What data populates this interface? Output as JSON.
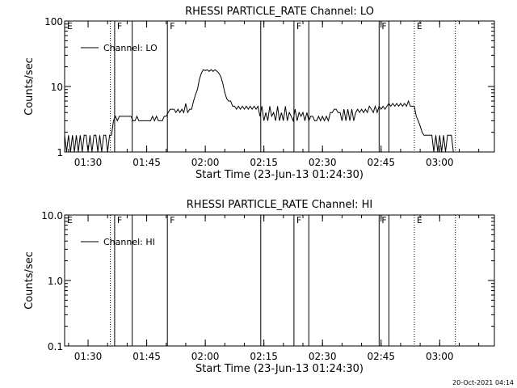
{
  "footer": {
    "timestamp": "20-Oct-2021 04:14"
  },
  "flag_markers": [
    {
      "t": 0.0,
      "label": "E",
      "style": "dotted"
    },
    {
      "t": 11.7,
      "label": "",
      "style": "dotted"
    },
    {
      "t": 12.8,
      "label": "F",
      "style": "solid"
    },
    {
      "t": 17.3,
      "label": "",
      "style": "solid"
    },
    {
      "t": 26.3,
      "label": "F",
      "style": "solid"
    },
    {
      "t": 50.2,
      "label": "",
      "style": "solid"
    },
    {
      "t": 58.7,
      "label": "F",
      "style": "solid"
    },
    {
      "t": 62.5,
      "label": "",
      "style": "solid"
    },
    {
      "t": 80.5,
      "label": "F",
      "style": "solid"
    },
    {
      "t": 83.0,
      "label": "",
      "style": "solid"
    },
    {
      "t": 89.5,
      "label": "E",
      "style": "dotted"
    },
    {
      "t": 100.0,
      "label": "",
      "style": "dotted"
    }
  ],
  "chart_data": [
    {
      "type": "line",
      "title": "RHESSI PARTICLE_RATE Channel: LO",
      "xlabel": "Start Time (23-Jun-13 01:24:30)",
      "ylabel": "Counts/sec",
      "yscale": "log",
      "ylim": [
        1,
        100
      ],
      "xlim_minutes": [
        0,
        110
      ],
      "x_ticks": [
        {
          "t": 6.0,
          "label": "01:30"
        },
        {
          "t": 21.0,
          "label": "01:45"
        },
        {
          "t": 36.0,
          "label": "02:00"
        },
        {
          "t": 51.0,
          "label": "02:15"
        },
        {
          "t": 66.0,
          "label": "02:30"
        },
        {
          "t": 81.0,
          "label": "02:45"
        },
        {
          "t": 96.0,
          "label": "03:00"
        }
      ],
      "y_ticks": [
        {
          "v": 1,
          "label": "1"
        },
        {
          "v": 10,
          "label": "10"
        },
        {
          "v": 100,
          "label": "100"
        }
      ],
      "legend": {
        "label": "Channel: LO",
        "placement": "top-left"
      },
      "series": [
        {
          "name": "Channel: LO",
          "points": [
            [
              0,
              1.8
            ],
            [
              0.5,
              1
            ],
            [
              1,
              1.8
            ],
            [
              1.5,
              1
            ],
            [
              2,
              1.8
            ],
            [
              2.5,
              1
            ],
            [
              3,
              1.8
            ],
            [
              3.5,
              1
            ],
            [
              4,
              1.8
            ],
            [
              4.5,
              1
            ],
            [
              5,
              1.8
            ],
            [
              5.5,
              1.8
            ],
            [
              6,
              1
            ],
            [
              6.5,
              1.8
            ],
            [
              7,
              1
            ],
            [
              7.5,
              1.8
            ],
            [
              8,
              1.8
            ],
            [
              8.5,
              1
            ],
            [
              9,
              1.8
            ],
            [
              9.5,
              1
            ],
            [
              10,
              1.8
            ],
            [
              10.5,
              1.8
            ],
            [
              11,
              1
            ],
            [
              11.5,
              1.8
            ],
            [
              12,
              1.8
            ],
            [
              12.5,
              3
            ],
            [
              13,
              3.5
            ],
            [
              13.5,
              3
            ],
            [
              14,
              3.5
            ],
            [
              14.5,
              3.5
            ],
            [
              15,
              3.5
            ],
            [
              15.5,
              3.5
            ],
            [
              16,
              3.5
            ],
            [
              16.5,
              3.5
            ],
            [
              17,
              3.5
            ],
            [
              17.5,
              3
            ],
            [
              18,
              3
            ],
            [
              18.5,
              3.5
            ],
            [
              19,
              3
            ],
            [
              19.5,
              3
            ],
            [
              20,
              3
            ],
            [
              20.5,
              3
            ],
            [
              21,
              3
            ],
            [
              21.5,
              3
            ],
            [
              22,
              3
            ],
            [
              22.5,
              3.5
            ],
            [
              23,
              3
            ],
            [
              23.5,
              3.5
            ],
            [
              24,
              3
            ],
            [
              24.5,
              3
            ],
            [
              25,
              3
            ],
            [
              25.5,
              3.5
            ],
            [
              26,
              3.5
            ],
            [
              26.5,
              4
            ],
            [
              27,
              4.5
            ],
            [
              27.5,
              4.5
            ],
            [
              28,
              4.5
            ],
            [
              28.5,
              4
            ],
            [
              29,
              4.5
            ],
            [
              29.5,
              4
            ],
            [
              30,
              4.5
            ],
            [
              30.5,
              4
            ],
            [
              31,
              5.5
            ],
            [
              31.5,
              4
            ],
            [
              32,
              4.5
            ],
            [
              32.5,
              4.5
            ],
            [
              33,
              6
            ],
            [
              33.5,
              7.5
            ],
            [
              34,
              9
            ],
            [
              34.5,
              13
            ],
            [
              35,
              16
            ],
            [
              35.5,
              18
            ],
            [
              36,
              17.5
            ],
            [
              36.5,
              18
            ],
            [
              37,
              17
            ],
            [
              37.5,
              18
            ],
            [
              38,
              17
            ],
            [
              38.5,
              18
            ],
            [
              39,
              17
            ],
            [
              39.5,
              16
            ],
            [
              40,
              14
            ],
            [
              40.5,
              11
            ],
            [
              41,
              8
            ],
            [
              41.5,
              6.5
            ],
            [
              42,
              6
            ],
            [
              42.5,
              6
            ],
            [
              43,
              5
            ],
            [
              43.5,
              5
            ],
            [
              44,
              4.5
            ],
            [
              44.5,
              5
            ],
            [
              45,
              4.5
            ],
            [
              45.5,
              5
            ],
            [
              46,
              4.5
            ],
            [
              46.5,
              5
            ],
            [
              47,
              4.5
            ],
            [
              47.5,
              5
            ],
            [
              48,
              4.5
            ],
            [
              48.5,
              5
            ],
            [
              49,
              4.5
            ],
            [
              49.5,
              5
            ],
            [
              50,
              3.5
            ],
            [
              50.5,
              5
            ],
            [
              51,
              3
            ],
            [
              51.5,
              4
            ],
            [
              52,
              3
            ],
            [
              52.5,
              5
            ],
            [
              53,
              3.5
            ],
            [
              53.5,
              4
            ],
            [
              54,
              3
            ],
            [
              54.5,
              5
            ],
            [
              55,
              3
            ],
            [
              55.5,
              4
            ],
            [
              56,
              3
            ],
            [
              56.5,
              5
            ],
            [
              57,
              3
            ],
            [
              57.5,
              4
            ],
            [
              58,
              3.5
            ],
            [
              58.5,
              3
            ],
            [
              59,
              4.5
            ],
            [
              59.5,
              3
            ],
            [
              60,
              4
            ],
            [
              60.5,
              3.5
            ],
            [
              61,
              4
            ],
            [
              61.5,
              3
            ],
            [
              62,
              4
            ],
            [
              62.5,
              3
            ],
            [
              63,
              3.5
            ],
            [
              63.5,
              3.5
            ],
            [
              64,
              3
            ],
            [
              64.5,
              3
            ],
            [
              65,
              3.5
            ],
            [
              65.5,
              3
            ],
            [
              66,
              3.5
            ],
            [
              66.5,
              3
            ],
            [
              67,
              3.5
            ],
            [
              67.5,
              3
            ],
            [
              68,
              4
            ],
            [
              68.5,
              4
            ],
            [
              69,
              4.5
            ],
            [
              69.5,
              4.5
            ],
            [
              70,
              4
            ],
            [
              70.5,
              4
            ],
            [
              71,
              3
            ],
            [
              71.5,
              4.5
            ],
            [
              72,
              3
            ],
            [
              72.5,
              4.5
            ],
            [
              73,
              3
            ],
            [
              73.5,
              4.5
            ],
            [
              74,
              3
            ],
            [
              74.5,
              4
            ],
            [
              75,
              4.5
            ],
            [
              75.5,
              4
            ],
            [
              76,
              4.5
            ],
            [
              76.5,
              4
            ],
            [
              77,
              4.5
            ],
            [
              77.5,
              4
            ],
            [
              78,
              5
            ],
            [
              78.5,
              4.5
            ],
            [
              79,
              4
            ],
            [
              79.5,
              5
            ],
            [
              80,
              4
            ],
            [
              80.5,
              5
            ],
            [
              81,
              4.5
            ],
            [
              81.5,
              5
            ],
            [
              82,
              4.5
            ],
            [
              82.5,
              5
            ],
            [
              83,
              5.5
            ],
            [
              83.5,
              5
            ],
            [
              84,
              5.5
            ],
            [
              84.5,
              5
            ],
            [
              85,
              5.5
            ],
            [
              85.5,
              5
            ],
            [
              86,
              5.5
            ],
            [
              86.5,
              5
            ],
            [
              87,
              5.5
            ],
            [
              87.5,
              5
            ],
            [
              88,
              6
            ],
            [
              88.5,
              5
            ],
            [
              89,
              5
            ],
            [
              89.5,
              5
            ],
            [
              90,
              3.5
            ],
            [
              90.5,
              3
            ],
            [
              91,
              2.5
            ],
            [
              91.5,
              2
            ],
            [
              92,
              1.8
            ],
            [
              92.5,
              1.8
            ],
            [
              93,
              1.8
            ],
            [
              93.5,
              1.8
            ],
            [
              94,
              1.8
            ],
            [
              94.5,
              1
            ],
            [
              95,
              1.8
            ],
            [
              95.5,
              1
            ],
            [
              96,
              1.8
            ],
            [
              96.5,
              1
            ],
            [
              97,
              1.8
            ],
            [
              97.5,
              1
            ],
            [
              98,
              1.8
            ],
            [
              98.5,
              1.8
            ],
            [
              99,
              1.8
            ],
            [
              99.5,
              1
            ],
            [
              100,
              1
            ]
          ]
        }
      ]
    },
    {
      "type": "line",
      "title": "RHESSI PARTICLE_RATE Channel: HI",
      "xlabel": "Start Time (23-Jun-13 01:24:30)",
      "ylabel": "Counts/sec",
      "yscale": "log",
      "ylim": [
        0.1,
        10
      ],
      "xlim_minutes": [
        0,
        110
      ],
      "x_ticks": [
        {
          "t": 6.0,
          "label": "01:30"
        },
        {
          "t": 21.0,
          "label": "01:45"
        },
        {
          "t": 36.0,
          "label": "02:00"
        },
        {
          "t": 51.0,
          "label": "02:15"
        },
        {
          "t": 66.0,
          "label": "02:30"
        },
        {
          "t": 81.0,
          "label": "02:45"
        },
        {
          "t": 96.0,
          "label": "03:00"
        }
      ],
      "y_ticks": [
        {
          "v": 0.1,
          "label": "0.1"
        },
        {
          "v": 1,
          "label": "1.0"
        },
        {
          "v": 10,
          "label": "10.0"
        }
      ],
      "legend": {
        "label": "Channel: HI",
        "placement": "top-left"
      },
      "series": [
        {
          "name": "Channel: HI",
          "points": []
        }
      ]
    }
  ]
}
